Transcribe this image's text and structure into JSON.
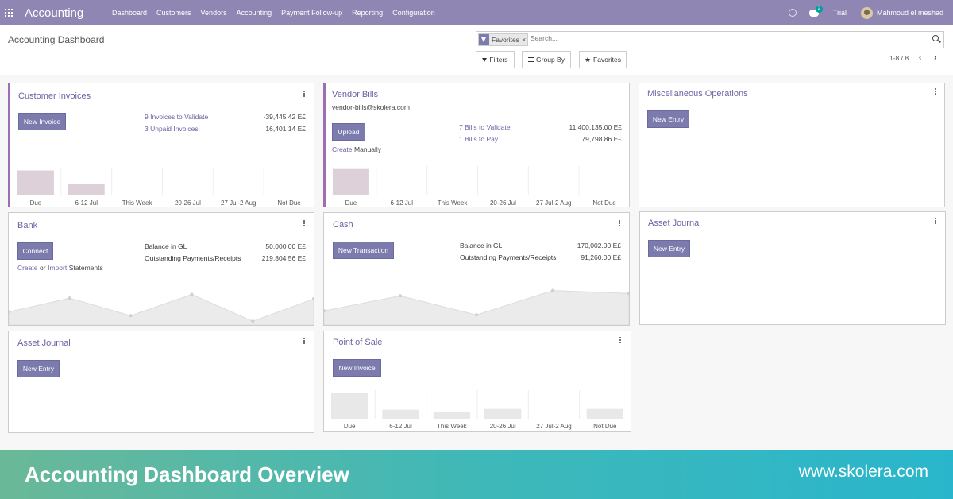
{
  "navbar": {
    "brand": "Accounting",
    "menu": [
      "Dashboard",
      "Customers",
      "Vendors",
      "Accounting",
      "Payment Follow-up",
      "Reporting",
      "Configuration"
    ],
    "messages_count": "2",
    "trial": "Trial",
    "user": "Mahmoud el meshad",
    "icons": [
      "apps-icon",
      "clock-icon",
      "chat-icon",
      "avatar"
    ]
  },
  "control_panel": {
    "title": "Accounting Dashboard",
    "facet_label": "Favorites",
    "facet_close": "×",
    "search_placeholder": "Search...",
    "filters_label": "Filters",
    "groupby_label": "Group By",
    "favorites_label": "Favorites",
    "pager": "1-8 / 8",
    "pager_prev": "‹",
    "pager_next": "›"
  },
  "cards": {
    "customer_invoices": {
      "title": "Customer Invoices",
      "button": "New Invoice",
      "stats": [
        {
          "label": "9 Invoices to Validate",
          "value": "-39,445.42 E£"
        },
        {
          "label": "3 Unpaid Invoices",
          "value": "16,401.14 E£"
        }
      ],
      "graph": {
        "categories": [
          "Due",
          "6-12 Jul",
          "This Week",
          "20-26 Jul",
          "27 Jul-2 Aug",
          "Not Due"
        ],
        "values": [
          1.0,
          0.45,
          0,
          0,
          0,
          0
        ]
      }
    },
    "vendor_bills": {
      "title": "Vendor Bills",
      "email": "vendor-bills@skolera.com",
      "button": "Upload",
      "create_link": "Create",
      "create_suffix": "Manually",
      "stats": [
        {
          "label": "7 Bills to Validate",
          "value": "11,400,135.00 E£"
        },
        {
          "label": "1 Bills to Pay",
          "value": "79,798.86 E£"
        }
      ],
      "graph": {
        "categories": [
          "Due",
          "6-12 Jul",
          "This Week",
          "20-26 Jul",
          "27 Jul-2 Aug",
          "Not Due"
        ],
        "values": [
          1.0,
          0,
          0,
          0,
          0,
          0
        ]
      }
    },
    "misc_operations": {
      "title": "Miscellaneous Operations",
      "button": "New Entry"
    },
    "bank": {
      "title": "Bank",
      "button": "Connect",
      "create_link": "Create",
      "or_text": "or",
      "import_link": "Import",
      "statements_text": "Statements",
      "stats": [
        {
          "label": "Balance in GL",
          "value": "50,000.00 E£"
        },
        {
          "label": "Outstanding Payments/Receipts",
          "value": "219,804.56 E£"
        }
      ],
      "graph": {
        "values": [
          0.35,
          0.72,
          0.25,
          0.82,
          0.1,
          0.7
        ]
      }
    },
    "cash": {
      "title": "Cash",
      "button": "New Transaction",
      "stats": [
        {
          "label": "Balance in GL",
          "value": "170,002.00 E£"
        },
        {
          "label": "Outstanding Payments/Receipts",
          "value": "91,260.00 E£"
        }
      ],
      "graph": {
        "values": [
          0.35,
          0.72,
          0.25,
          0.85,
          0.78
        ]
      }
    },
    "asset_journal_right": {
      "title": "Asset Journal",
      "button": "New Entry"
    },
    "asset_journal_left": {
      "title": "Asset Journal",
      "button": "New Entry"
    },
    "point_of_sale": {
      "title": "Point of Sale",
      "button": "New Invoice",
      "graph": {
        "categories": [
          "Due",
          "6-12 Jul",
          "This Week",
          "20-26 Jul",
          "27 Jul-2 Aug",
          "Not Due"
        ],
        "values": [
          1.0,
          0.35,
          0.25,
          0.38,
          0,
          0.38
        ]
      }
    }
  },
  "banner": {
    "title": "Accounting Dashboard Overview",
    "url": "www.skolera.com"
  },
  "colors": {
    "navbar": "#8f86b3",
    "primary_button": "#7c7bad",
    "card_title": "#6b63a3",
    "accent_border": "#9b6fb2",
    "graph_fill": "#ebebeb"
  }
}
